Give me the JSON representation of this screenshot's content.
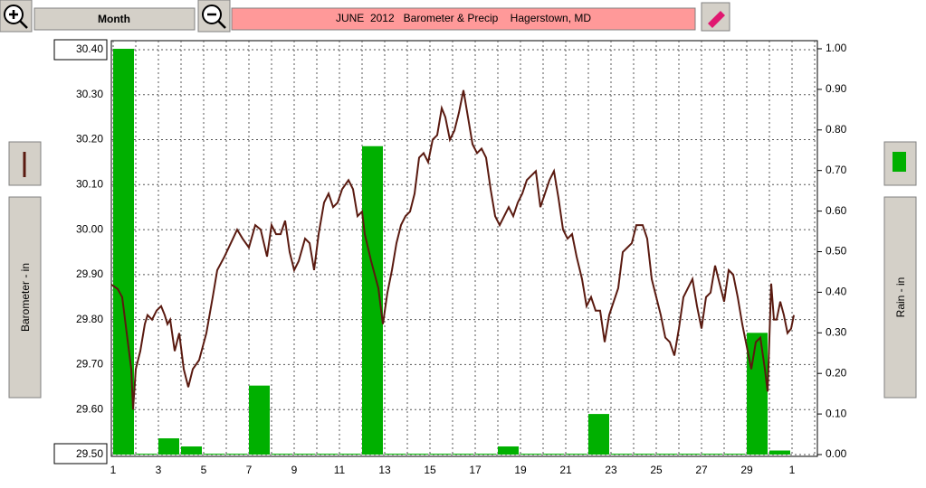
{
  "toolbar": {
    "period": "Month",
    "title": "JUNE  2012   Barometer & Precip    Hagerstown, MD"
  },
  "chart_data": {
    "type": "combo",
    "ylabel": "Barometer - in",
    "y2label": "Rain - in",
    "xlim": [
      0.92,
      32.12
    ],
    "xticks": [
      1,
      3,
      5,
      7,
      9,
      11,
      13,
      15,
      17,
      19,
      21,
      23,
      25,
      27,
      29,
      {
        "value": 31,
        "label": "1"
      }
    ],
    "xgrid": [
      2,
      4,
      6,
      8,
      10,
      12,
      14,
      16,
      18,
      20,
      22,
      24,
      26,
      28,
      30,
      32
    ],
    "ylim": [
      29.5,
      30.42
    ],
    "yticks": [
      {
        "value": 29.5,
        "label": "29.50"
      },
      {
        "value": 29.6,
        "label": "29.60"
      },
      {
        "value": 29.7,
        "label": "29.70"
      },
      {
        "value": 29.8,
        "label": "29.80"
      },
      {
        "value": 29.9,
        "label": "29.90"
      },
      {
        "value": 30.0,
        "label": "30.00"
      },
      {
        "value": 30.1,
        "label": "30.10"
      },
      {
        "value": 30.2,
        "label": "30.20"
      },
      {
        "value": 30.3,
        "label": "30.30"
      },
      {
        "value": 30.4,
        "label": "30.40"
      }
    ],
    "y2lim": [
      0,
      1.02
    ],
    "y2ticks": [
      {
        "value": 0,
        "label": "0.00"
      },
      {
        "value": 0.1,
        "label": "0.10"
      },
      {
        "value": 0.2,
        "label": "0.20"
      },
      {
        "value": 0.3,
        "label": "0.30"
      },
      {
        "value": 0.4,
        "label": "0.40"
      },
      {
        "value": 0.5,
        "label": "0.50"
      },
      {
        "value": 0.6,
        "label": "0.60"
      },
      {
        "value": 0.7,
        "label": "0.70"
      },
      {
        "value": 0.8,
        "label": "0.80"
      },
      {
        "value": 0.9,
        "label": "0.90"
      },
      {
        "value": 1,
        "label": "1.00"
      }
    ],
    "grid": true,
    "series": [
      {
        "type": "line",
        "color": "#5a1a10",
        "x": [
          0.92,
          1.2,
          1.4,
          1.6,
          1.8,
          1.88,
          2,
          2.2,
          2.4,
          2.52,
          2.72,
          2.92,
          3.12,
          3.28,
          3.4,
          3.52,
          3.72,
          3.92,
          4.12,
          4.32,
          4.52,
          4.8,
          5.12,
          5.4,
          5.6,
          5.92,
          6.2,
          6.48,
          6.72,
          7,
          7.28,
          7.52,
          7.8,
          8,
          8.2,
          8.4,
          8.6,
          8.8,
          9,
          9.2,
          9.48,
          9.68,
          9.88,
          10.08,
          10.32,
          10.52,
          10.72,
          10.92,
          11.12,
          11.4,
          11.6,
          11.8,
          12,
          12.12,
          12.4,
          12.72,
          12.92,
          13.12,
          13.32,
          13.52,
          13.72,
          13.92,
          14.12,
          14.32,
          14.52,
          14.72,
          14.92,
          15.12,
          15.32,
          15.52,
          15.68,
          15.88,
          16.08,
          16.28,
          16.48,
          16.68,
          16.88,
          17.08,
          17.28,
          17.48,
          17.68,
          17.88,
          18.08,
          18.28,
          18.48,
          18.68,
          18.88,
          19.08,
          19.28,
          19.48,
          19.68,
          19.88,
          20.08,
          20.28,
          20.48,
          20.68,
          20.88,
          21.08,
          21.28,
          21.48,
          21.72,
          21.92,
          22.12,
          22.32,
          22.52,
          22.72,
          22.92,
          23.12,
          23.32,
          23.52,
          23.72,
          23.92,
          24.12,
          24.4,
          24.6,
          24.8,
          25,
          25.2,
          25.4,
          25.6,
          25.8,
          26,
          26.2,
          26.4,
          26.6,
          26.8,
          27,
          27.2,
          27.4,
          27.6,
          27.8,
          28,
          28.2,
          28.4,
          28.6,
          28.8,
          29,
          29.2,
          29.4,
          29.6,
          29.8,
          29.92,
          30.08,
          30.2,
          30.32,
          30.48,
          30.64,
          30.8,
          30.96,
          31.08
        ],
        "values": [
          29.878,
          29.868,
          29.85,
          29.77,
          29.69,
          29.6,
          29.69,
          29.73,
          29.79,
          29.81,
          29.8,
          29.82,
          29.83,
          29.81,
          29.79,
          29.8,
          29.73,
          29.77,
          29.69,
          29.65,
          29.69,
          29.71,
          29.77,
          29.85,
          29.91,
          29.94,
          29.97,
          30.0,
          29.98,
          29.96,
          30.01,
          30.0,
          29.94,
          30.01,
          29.99,
          29.99,
          30.02,
          29.95,
          29.91,
          29.93,
          29.98,
          29.97,
          29.91,
          29.99,
          30.06,
          30.08,
          30.05,
          30.06,
          30.09,
          30.11,
          30.09,
          30.03,
          30.04,
          29.99,
          29.93,
          29.87,
          29.79,
          29.86,
          29.91,
          29.97,
          30.01,
          30.03,
          30.04,
          30.08,
          30.16,
          30.17,
          30.15,
          30.2,
          30.21,
          30.27,
          30.25,
          30.2,
          30.22,
          30.26,
          30.31,
          30.25,
          30.19,
          30.17,
          30.18,
          30.16,
          30.09,
          30.03,
          30.01,
          30.03,
          30.05,
          30.03,
          30.06,
          30.08,
          30.11,
          30.12,
          30.13,
          30.05,
          30.08,
          30.11,
          30.13,
          30.07,
          30.0,
          29.98,
          29.99,
          29.94,
          29.89,
          29.83,
          29.85,
          29.82,
          29.82,
          29.75,
          29.81,
          29.84,
          29.87,
          29.95,
          29.96,
          29.97,
          30.01,
          30.01,
          29.98,
          29.89,
          29.85,
          29.81,
          29.76,
          29.75,
          29.72,
          29.78,
          29.85,
          29.87,
          29.89,
          29.83,
          29.78,
          29.85,
          29.86,
          29.92,
          29.88,
          29.84,
          29.91,
          29.9,
          29.85,
          29.79,
          29.74,
          29.69,
          29.75,
          29.76,
          29.69,
          29.64,
          29.88,
          29.8,
          29.8,
          29.84,
          29.81,
          29.77,
          29.78,
          29.81
        ]
      },
      {
        "type": "bar",
        "axis": "y2",
        "color": "#00b000",
        "x": [
          1,
          2,
          3,
          4,
          5,
          6,
          7,
          8,
          9,
          10,
          11,
          12,
          13,
          14,
          15,
          16,
          17,
          18,
          19,
          20,
          21,
          22,
          23,
          24,
          25,
          26,
          27,
          28,
          29,
          30
        ],
        "values": [
          1.0,
          0,
          0.04,
          0.02,
          0,
          0,
          0.17,
          0,
          0,
          0,
          0,
          0.76,
          0,
          0,
          0,
          0,
          0,
          0.02,
          0,
          0,
          0,
          0.1,
          0,
          0,
          0,
          0,
          0,
          0,
          0.3,
          0.01
        ]
      }
    ]
  }
}
